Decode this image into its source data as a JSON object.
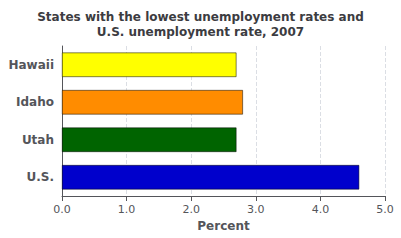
{
  "chart_data": {
    "type": "bar",
    "orientation": "horizontal",
    "title": "States with the lowest unemployment rates and\nU.S. unemployment rate, 2007",
    "xlabel": "Percent",
    "categories": [
      "U.S.",
      "Utah",
      "Idaho",
      "Hawaii"
    ],
    "values": [
      4.6,
      2.7,
      2.8,
      2.7
    ],
    "colors": [
      "#0000CC",
      "#006400",
      "#FF8C00",
      "#FFFF00"
    ],
    "xlim": [
      0,
      5.0
    ],
    "xticks": [
      {
        "value": 0.0,
        "label": "0.0"
      },
      {
        "value": 1.0,
        "label": "1.0"
      },
      {
        "value": 2.0,
        "label": "2.0"
      },
      {
        "value": 3.0,
        "label": "3.0"
      },
      {
        "value": 4.0,
        "label": "4.0"
      },
      {
        "value": 5.0,
        "label": "5.0"
      }
    ],
    "grid": true
  }
}
